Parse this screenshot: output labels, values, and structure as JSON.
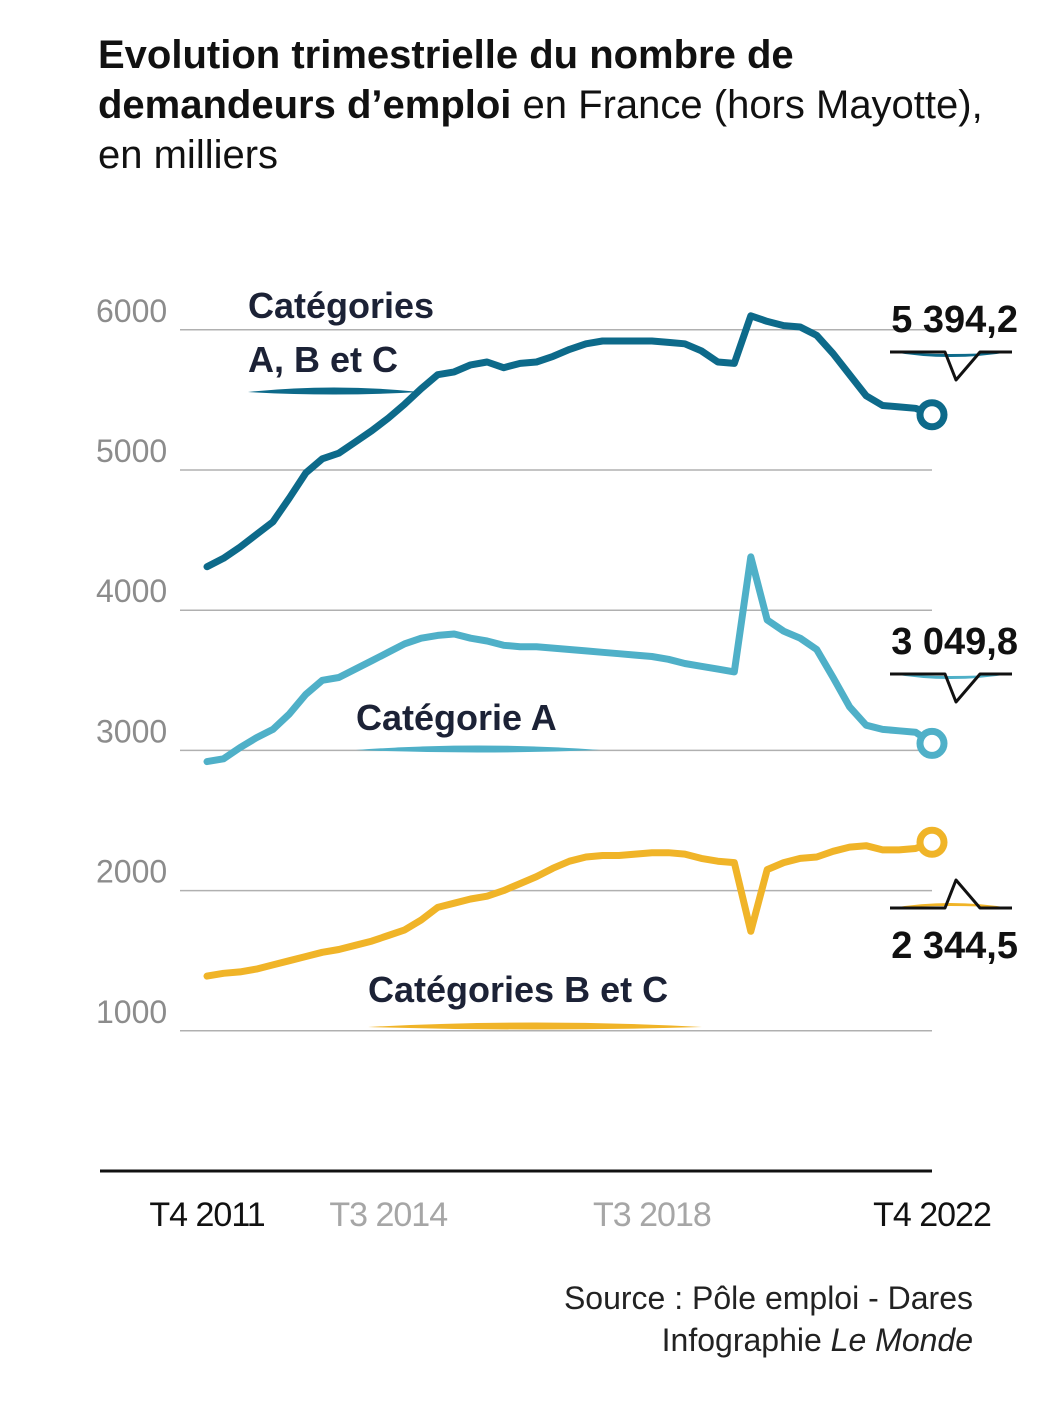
{
  "title": {
    "bold": "Evolution trimestrielle du nombre de demandeurs d’emploi",
    "rest": " en France (hors Mayotte), en milliers"
  },
  "source": {
    "line1": "Source : Pôle emploi - Dares",
    "credit_prefix": "Infographie ",
    "credit_name": "Le Monde"
  },
  "chart_data": {
    "type": "line",
    "ylim": [
      0,
      6300
    ],
    "y_ticks": [
      "1000",
      "2000",
      "3000",
      "4000",
      "5000",
      "6000"
    ],
    "x_ticks": [
      {
        "label": "T4 2011",
        "index": 0,
        "emphasis": true
      },
      {
        "label": "T3 2014",
        "index": 11,
        "emphasis": false
      },
      {
        "label": "T3 2018",
        "index": 27,
        "emphasis": false
      },
      {
        "label": "T4 2022",
        "index": 44,
        "emphasis": true
      }
    ],
    "grid": true,
    "series": [
      {
        "name": "Catégories A, B et C",
        "color": "#0d6a8a",
        "label_lines": [
          "Catégories",
          "A, B et C"
        ],
        "end_label": "5 394,2",
        "values": [
          4310,
          4370,
          4450,
          4540,
          4630,
          4800,
          4980,
          5080,
          5120,
          5200,
          5280,
          5370,
          5470,
          5580,
          5680,
          5700,
          5750,
          5770,
          5730,
          5760,
          5770,
          5810,
          5860,
          5900,
          5920,
          5920,
          5920,
          5920,
          5910,
          5900,
          5850,
          5770,
          5760,
          6100,
          6060,
          6030,
          6020,
          5960,
          5830,
          5680,
          5530,
          5460,
          5450,
          5440,
          5394.2
        ]
      },
      {
        "name": "Catégorie A",
        "color": "#4fb0c8",
        "label_lines": [
          "Catégorie A"
        ],
        "end_label": "3 049,8",
        "values": [
          2920,
          2940,
          3020,
          3090,
          3150,
          3260,
          3400,
          3500,
          3520,
          3580,
          3640,
          3700,
          3760,
          3800,
          3820,
          3830,
          3800,
          3780,
          3750,
          3740,
          3740,
          3730,
          3720,
          3710,
          3700,
          3690,
          3680,
          3670,
          3650,
          3620,
          3600,
          3580,
          3560,
          4380,
          3930,
          3850,
          3800,
          3720,
          3520,
          3310,
          3180,
          3150,
          3140,
          3130,
          3049.8
        ]
      },
      {
        "name": "Catégories B et C",
        "color": "#f0b428",
        "label_lines": [
          "Catégories B et C"
        ],
        "end_label": "2 344,5",
        "values": [
          1390,
          1410,
          1420,
          1440,
          1470,
          1500,
          1530,
          1560,
          1580,
          1610,
          1640,
          1680,
          1720,
          1790,
          1880,
          1910,
          1940,
          1960,
          2000,
          2050,
          2100,
          2160,
          2210,
          2240,
          2250,
          2250,
          2260,
          2270,
          2270,
          2260,
          2230,
          2210,
          2200,
          1710,
          2150,
          2200,
          2230,
          2240,
          2280,
          2310,
          2320,
          2290,
          2290,
          2300,
          2344.5
        ]
      }
    ]
  }
}
